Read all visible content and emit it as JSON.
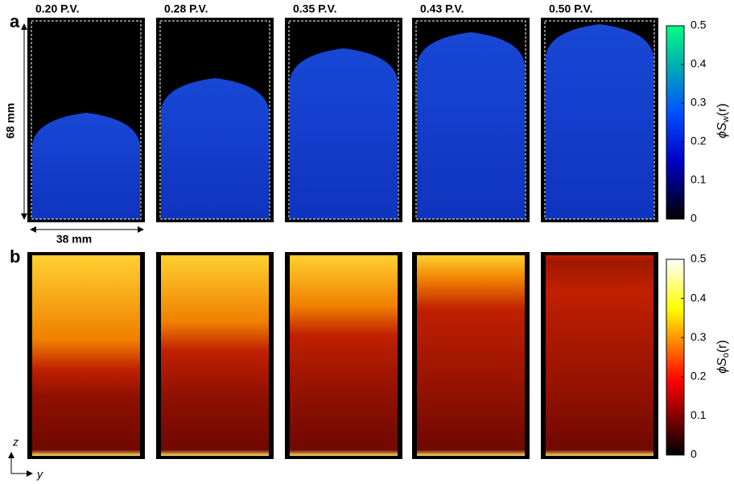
{
  "panels": [
    {
      "label": "a",
      "columns": [
        "0.20 P.V.",
        "0.28 P.V.",
        "0.35 P.V.",
        "0.43 P.V.",
        "0.50 P.V."
      ],
      "height_label": "68 mm",
      "width_label": "38 mm",
      "colorbar": {
        "symbol": "ϕS",
        "subscript": "w",
        "argument": "(r)",
        "ticks": [
          0,
          0.1,
          0.2,
          0.3,
          0.4,
          0.5
        ]
      }
    },
    {
      "label": "b",
      "axis_z": "z",
      "axis_y": "y",
      "colorbar": {
        "symbol": "ϕS",
        "subscript": "o",
        "argument": "(r)",
        "ticks": [
          0,
          0.1,
          0.2,
          0.3,
          0.4,
          0.5
        ]
      }
    }
  ]
}
